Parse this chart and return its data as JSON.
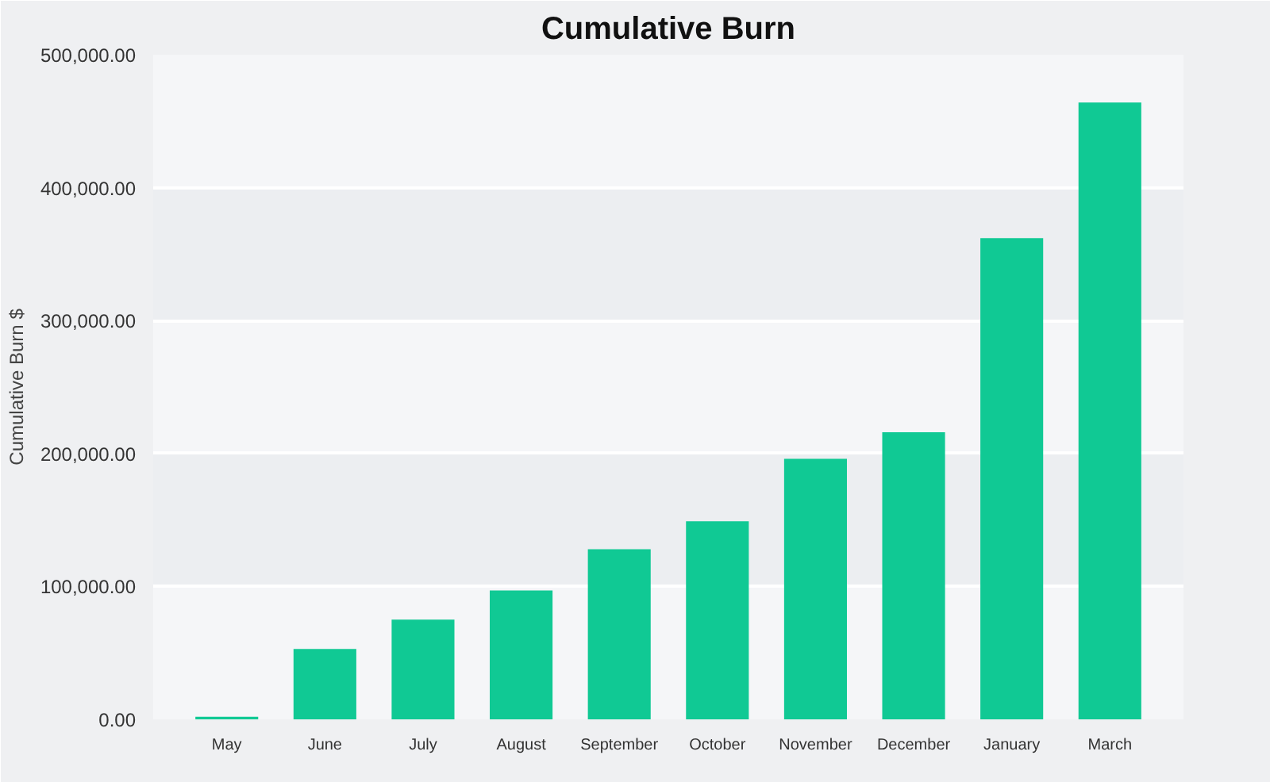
{
  "chart_data": {
    "type": "bar",
    "title": "Cumulative Burn",
    "ylabel": "Cumulative Burn $",
    "categories": [
      "May",
      "June",
      "July",
      "August",
      "September",
      "October",
      "November",
      "December",
      "January",
      "March"
    ],
    "values": [
      2000,
      53000,
      75000,
      97000,
      128000,
      149000,
      196000,
      216000,
      362000,
      464000
    ],
    "color": "#10c994",
    "ylim": [
      0,
      500000
    ],
    "yticks": [
      {
        "value": 0,
        "label": "0.00"
      },
      {
        "value": 100000,
        "label": "100,000.00"
      },
      {
        "value": 200000,
        "label": "200,000.00"
      },
      {
        "value": 300000,
        "label": "300,000.00"
      },
      {
        "value": 400000,
        "label": "400,000.00"
      },
      {
        "value": 500000,
        "label": "500,000.00"
      }
    ],
    "grid": "y"
  }
}
